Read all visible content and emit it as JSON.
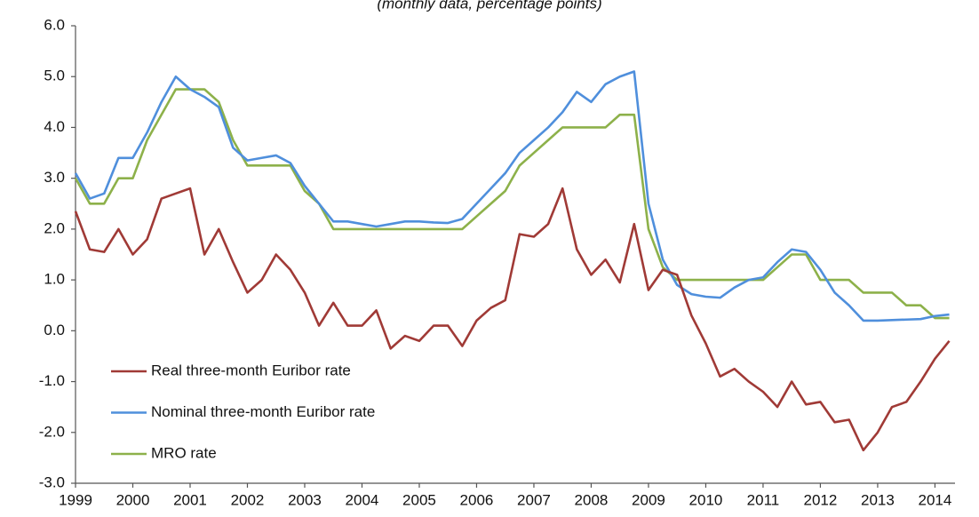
{
  "chart_data": {
    "type": "line",
    "subtitle": "(monthly data, percentage points)",
    "x": [
      1999,
      1999.25,
      1999.5,
      1999.75,
      2000,
      2000.25,
      2000.5,
      2000.75,
      2001,
      2001.25,
      2001.5,
      2001.75,
      2002,
      2002.25,
      2002.5,
      2002.75,
      2003,
      2003.25,
      2003.5,
      2003.75,
      2004,
      2004.25,
      2004.5,
      2004.75,
      2005,
      2005.25,
      2005.5,
      2005.75,
      2006,
      2006.25,
      2006.5,
      2006.75,
      2007,
      2007.25,
      2007.5,
      2007.75,
      2008,
      2008.25,
      2008.5,
      2008.75,
      2009,
      2009.25,
      2009.5,
      2009.75,
      2010,
      2010.25,
      2010.5,
      2010.75,
      2011,
      2011.25,
      2011.5,
      2011.75,
      2012,
      2012.25,
      2012.5,
      2012.75,
      2013,
      2013.25,
      2013.5,
      2013.75,
      2014,
      2014.25
    ],
    "series": [
      {
        "name": "Real three-month Euribor rate",
        "color": "#a03a36",
        "values": [
          2.35,
          1.6,
          1.55,
          2.0,
          1.5,
          1.8,
          2.6,
          2.7,
          2.8,
          1.5,
          2.0,
          1.35,
          0.75,
          1.0,
          1.5,
          1.2,
          0.75,
          0.1,
          0.55,
          0.1,
          0.1,
          0.4,
          -0.35,
          -0.1,
          -0.2,
          0.1,
          0.1,
          -0.3,
          0.2,
          0.45,
          0.6,
          1.9,
          1.85,
          2.1,
          2.8,
          1.6,
          1.1,
          1.4,
          0.95,
          2.1,
          0.8,
          1.2,
          1.1,
          0.3,
          -0.25,
          -0.9,
          -0.75,
          -1.0,
          -1.2,
          -1.5,
          -1.0,
          -1.45,
          -1.4,
          -1.8,
          -1.75,
          -2.35,
          -2.0,
          -1.5,
          -1.4,
          -1.0,
          -0.55,
          -0.2
        ]
      },
      {
        "name": "Nominal three-month Euribor rate",
        "color": "#4f8fdc",
        "values": [
          3.1,
          2.6,
          2.7,
          3.4,
          3.4,
          3.9,
          4.5,
          5.0,
          4.75,
          4.6,
          4.4,
          3.6,
          3.35,
          3.4,
          3.45,
          3.3,
          2.85,
          2.5,
          2.15,
          2.15,
          2.1,
          2.05,
          2.1,
          2.15,
          2.15,
          2.13,
          2.12,
          2.2,
          2.5,
          2.8,
          3.1,
          3.5,
          3.75,
          4.0,
          4.3,
          4.7,
          4.5,
          4.85,
          5.0,
          5.1,
          2.5,
          1.4,
          0.9,
          0.72,
          0.67,
          0.65,
          0.85,
          1.0,
          1.05,
          1.35,
          1.6,
          1.55,
          1.2,
          0.75,
          0.5,
          0.2,
          0.2,
          0.21,
          0.22,
          0.23,
          0.29,
          0.32
        ]
      },
      {
        "name": "MRO rate",
        "color": "#8db14a",
        "values": [
          3.0,
          2.5,
          2.5,
          3.0,
          3.0,
          3.75,
          4.25,
          4.75,
          4.75,
          4.75,
          4.5,
          3.75,
          3.25,
          3.25,
          3.25,
          3.25,
          2.75,
          2.5,
          2.0,
          2.0,
          2,
          2,
          2,
          2,
          2,
          2,
          2,
          2,
          2.25,
          2.5,
          2.75,
          3.25,
          3.5,
          3.75,
          4.0,
          4.0,
          4.0,
          4.0,
          4.25,
          4.25,
          2.0,
          1.25,
          1.0,
          1.0,
          1,
          1,
          1,
          1,
          1.0,
          1.25,
          1.5,
          1.5,
          1.0,
          1.0,
          1.0,
          0.75,
          0.75,
          0.75,
          0.5,
          0.5,
          0.25,
          0.25
        ]
      }
    ],
    "xlim": [
      1999,
      2014.35
    ],
    "xticks": [
      1999,
      2000,
      2001,
      2002,
      2003,
      2004,
      2005,
      2006,
      2007,
      2008,
      2009,
      2010,
      2011,
      2012,
      2013,
      2014
    ],
    "ylim": [
      -3,
      6
    ],
    "yticks": [
      {
        "value": -3,
        "label": "-3.0"
      },
      {
        "value": -2,
        "label": "-2.0"
      },
      {
        "value": -1,
        "label": "-1.0"
      },
      {
        "value": 0,
        "label": "0.0"
      },
      {
        "value": 1,
        "label": "1.0"
      },
      {
        "value": 2,
        "label": "2.0"
      },
      {
        "value": 3,
        "label": "3.0"
      },
      {
        "value": 4,
        "label": "4.0"
      },
      {
        "value": 5,
        "label": "5.0"
      },
      {
        "value": 6,
        "label": "6.0"
      }
    ],
    "grid": false,
    "legend": "lower left"
  }
}
